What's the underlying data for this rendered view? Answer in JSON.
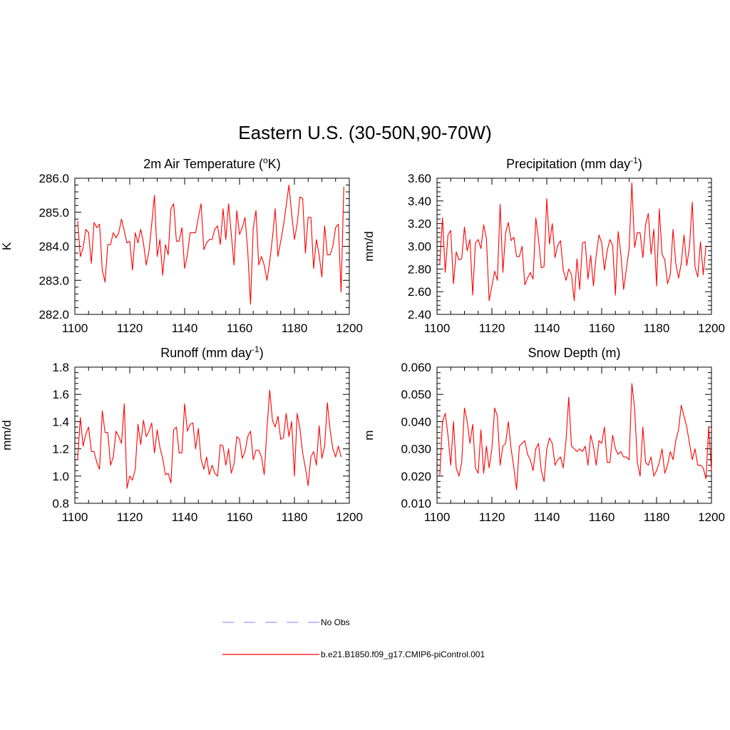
{
  "title": "Eastern U.S. (30-50N,90-70W)",
  "colors": {
    "model": "#ff0000",
    "obs": "#9999ff"
  },
  "legend": [
    {
      "label": "No Obs",
      "style": "dashed",
      "color": "#9999ff"
    },
    {
      "label": "b.e21.B1850.f09_g17.CMIP6-piControl.001",
      "style": "solid",
      "color": "#ff0000"
    }
  ],
  "chart_data": [
    {
      "type": "line",
      "title": "2m Air Temperature (",
      "title_sup": "o",
      "title_tail": "K)",
      "ylabel": "K",
      "xlim": [
        1100,
        1200
      ],
      "ylim": [
        282.0,
        286.0
      ],
      "xticks": [
        1100,
        1120,
        1140,
        1160,
        1180,
        1200
      ],
      "yticks": [
        "282.0",
        "283.0",
        "284.0",
        "285.0",
        "286.0"
      ],
      "series": [
        {
          "name": "b.e21.B1850.f09_g17.CMIP6-piControl.001",
          "x_start": 1101,
          "values": [
            284.75,
            283.7,
            283.95,
            284.5,
            284.4,
            283.5,
            284.7,
            284.55,
            284.65,
            283.3,
            282.95,
            284.05,
            284.05,
            284.4,
            284.25,
            284.4,
            284.8,
            284.45,
            284.1,
            284.15,
            283.3,
            284.4,
            284.1,
            284.5,
            284.1,
            283.45,
            283.85,
            284.65,
            285.5,
            283.7,
            284.2,
            283.15,
            284.05,
            283.75,
            285.1,
            285.25,
            284.15,
            284.15,
            284.55,
            283.35,
            283.75,
            284.4,
            284.4,
            284.4,
            284.85,
            285.25,
            283.9,
            284.1,
            284.2,
            284.2,
            284.5,
            284.6,
            284.05,
            285.1,
            284.2,
            285.25,
            284.35,
            283.45,
            285.05,
            284.35,
            284.55,
            284.85,
            283.85,
            282.3,
            284.55,
            285.05,
            283.45,
            283.7,
            283.45,
            283.0,
            283.55,
            284.25,
            285.1,
            283.7,
            284.15,
            284.6,
            285.2,
            285.8,
            284.95,
            284.2,
            284.65,
            285.45,
            285.4,
            283.8,
            284.85,
            284.85,
            283.35,
            284.2,
            283.75,
            283.1,
            284.6,
            283.75,
            283.75,
            284.0,
            284.55,
            284.65,
            282.65,
            285.75
          ]
        }
      ]
    },
    {
      "type": "line",
      "title": "Precipitation (mm day",
      "title_sup": "-1",
      "title_tail": ")",
      "ylabel": "mm/d",
      "xlim": [
        1100,
        1200
      ],
      "ylim": [
        2.4,
        3.6
      ],
      "xticks": [
        1100,
        1120,
        1140,
        1160,
        1180,
        1200
      ],
      "yticks": [
        "2.40",
        "2.60",
        "2.80",
        "3.00",
        "3.20",
        "3.40",
        "3.60"
      ],
      "series": [
        {
          "name": "b.e21.B1850.f09_g17.CMIP6-piControl.001",
          "x_start": 1101,
          "values": [
            2.84,
            3.25,
            2.77,
            3.1,
            3.14,
            2.67,
            2.95,
            2.88,
            2.89,
            3.17,
            2.96,
            3.06,
            2.57,
            3.03,
            3.06,
            2.98,
            3.19,
            3.07,
            2.52,
            2.65,
            2.78,
            2.7,
            3.37,
            2.77,
            3.12,
            3.21,
            3.05,
            3.08,
            2.91,
            2.91,
            3.0,
            2.66,
            2.72,
            2.77,
            2.71,
            3.25,
            3.06,
            2.81,
            2.82,
            3.42,
            3.02,
            3.2,
            2.9,
            3.01,
            3.05,
            2.79,
            2.7,
            2.8,
            2.75,
            2.52,
            2.89,
            2.62,
            3.03,
            3.04,
            2.71,
            2.92,
            2.65,
            2.92,
            3.1,
            3.03,
            2.79,
            2.96,
            3.06,
            3.01,
            2.57,
            3.13,
            2.93,
            2.62,
            2.8,
            2.98,
            3.56,
            2.99,
            3.12,
            3.12,
            2.9,
            3.19,
            3.29,
            2.93,
            3.15,
            2.65,
            3.33,
            2.93,
            2.88,
            2.67,
            2.75,
            3.15,
            2.85,
            2.72,
            2.85,
            3.1,
            2.83,
            3.0,
            3.39,
            2.82,
            2.73,
            3.04,
            2.75,
            3.0
          ]
        }
      ]
    },
    {
      "type": "line",
      "title": "Runoff (mm day",
      "title_sup": "-1",
      "title_tail": ")",
      "ylabel": "mm/d",
      "xlim": [
        1100,
        1200
      ],
      "ylim": [
        0.8,
        1.8
      ],
      "xticks": [
        1100,
        1120,
        1140,
        1160,
        1180,
        1200
      ],
      "yticks": [
        "0.8",
        "1.0",
        "1.2",
        "1.4",
        "1.6",
        "1.8"
      ],
      "series": [
        {
          "name": "b.e21.B1850.f09_g17.CMIP6-piControl.001",
          "x_start": 1101,
          "values": [
            1.12,
            1.43,
            1.22,
            1.31,
            1.36,
            1.18,
            1.18,
            1.1,
            1.05,
            1.48,
            1.32,
            1.32,
            1.08,
            1.14,
            1.33,
            1.29,
            1.24,
            1.53,
            0.91,
            1.0,
            0.97,
            1.05,
            1.38,
            1.23,
            1.41,
            1.29,
            1.33,
            1.39,
            1.17,
            1.34,
            1.21,
            1.13,
            1.01,
            1.02,
            0.95,
            1.34,
            1.36,
            1.17,
            1.17,
            1.53,
            1.33,
            1.38,
            1.39,
            1.2,
            1.35,
            1.12,
            1.05,
            1.14,
            1.01,
            1.08,
            1.02,
            1.0,
            1.23,
            1.22,
            1.08,
            1.2,
            1.02,
            1.09,
            1.29,
            1.27,
            1.13,
            1.18,
            1.29,
            1.33,
            1.12,
            1.19,
            1.19,
            1.14,
            1.01,
            1.35,
            1.63,
            1.41,
            1.36,
            1.44,
            1.27,
            1.28,
            1.46,
            1.29,
            1.4,
            1.0,
            1.46,
            1.35,
            1.17,
            1.06,
            0.93,
            1.14,
            1.18,
            1.08,
            1.37,
            1.13,
            1.22,
            1.54,
            1.34,
            1.2,
            1.14,
            1.22,
            1.14
          ]
        }
      ]
    },
    {
      "type": "line",
      "title": "Snow Depth (m)",
      "title_sup": "",
      "title_tail": "",
      "ylabel": "m",
      "xlim": [
        1100,
        1200
      ],
      "ylim": [
        0.01,
        0.06
      ],
      "xticks": [
        1100,
        1120,
        1140,
        1160,
        1180,
        1200
      ],
      "yticks": [
        "0.010",
        "0.020",
        "0.030",
        "0.040",
        "0.050",
        "0.060"
      ],
      "series": [
        {
          "name": "b.e21.B1850.f09_g17.CMIP6-piControl.001",
          "x_start": 1101,
          "values": [
            0.02,
            0.04,
            0.043,
            0.035,
            0.024,
            0.04,
            0.023,
            0.02,
            0.025,
            0.045,
            0.04,
            0.032,
            0.039,
            0.023,
            0.021,
            0.037,
            0.021,
            0.031,
            0.023,
            0.03,
            0.045,
            0.042,
            0.024,
            0.031,
            0.032,
            0.04,
            0.03,
            0.023,
            0.015,
            0.031,
            0.032,
            0.033,
            0.028,
            0.026,
            0.022,
            0.03,
            0.032,
            0.022,
            0.018,
            0.03,
            0.034,
            0.032,
            0.024,
            0.026,
            0.027,
            0.023,
            0.033,
            0.049,
            0.031,
            0.03,
            0.029,
            0.03,
            0.029,
            0.031,
            0.024,
            0.035,
            0.031,
            0.024,
            0.033,
            0.032,
            0.038,
            0.025,
            0.025,
            0.035,
            0.03,
            0.028,
            0.029,
            0.027,
            0.027,
            0.026,
            0.054,
            0.045,
            0.025,
            0.02,
            0.038,
            0.025,
            0.024,
            0.027,
            0.02,
            0.022,
            0.025,
            0.03,
            0.021,
            0.024,
            0.029,
            0.026,
            0.033,
            0.037,
            0.046,
            0.042,
            0.038,
            0.032,
            0.026,
            0.03,
            0.024,
            0.024,
            0.023,
            0.019,
            0.038,
            0.022
          ]
        }
      ]
    }
  ]
}
